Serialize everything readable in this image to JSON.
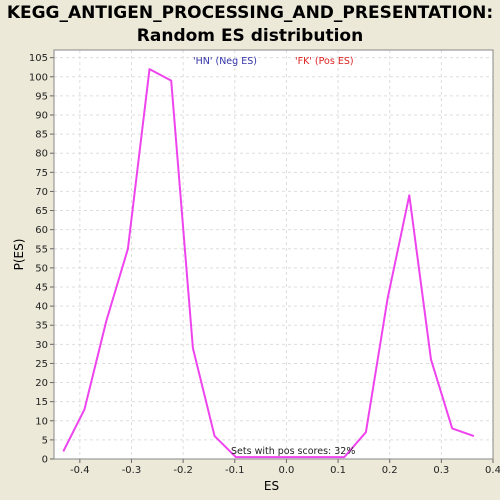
{
  "chart_data": {
    "type": "line",
    "title": "KEGG_ANTIGEN_PROCESSING_AND_PRESENTATION:",
    "subtitle": "Random ES distribution",
    "xlabel": "ES",
    "ylabel": "P(ES)",
    "xlim": [
      -0.45,
      0.4
    ],
    "ylim": [
      0,
      107
    ],
    "x_ticks": [
      "-0.4",
      "-0.3",
      "-0.2",
      "-0.1",
      "0.0",
      "0.1",
      "0.2",
      "0.3",
      "0.4"
    ],
    "y_ticks": [
      "0",
      "5",
      "10",
      "15",
      "20",
      "25",
      "30",
      "35",
      "40",
      "45",
      "50",
      "55",
      "60",
      "65",
      "70",
      "75",
      "80",
      "85",
      "90",
      "95",
      "100",
      "105"
    ],
    "grid": true,
    "series": [
      {
        "color": "#EE44EE",
        "points": [
          [
            -0.432,
            2
          ],
          [
            -0.391,
            13
          ],
          [
            -0.349,
            36
          ],
          [
            -0.307,
            55
          ],
          [
            -0.265,
            102
          ],
          [
            -0.223,
            99
          ],
          [
            -0.181,
            29
          ],
          [
            -0.139,
            6
          ],
          [
            -0.098,
            0.5
          ],
          [
            -0.056,
            0.5
          ],
          [
            -0.014,
            0.5
          ],
          [
            0.028,
            0.5
          ],
          [
            0.07,
            0.5
          ],
          [
            0.112,
            0.5
          ],
          [
            0.154,
            7
          ],
          [
            0.196,
            42
          ],
          [
            0.238,
            69
          ],
          [
            0.28,
            26
          ],
          [
            0.321,
            8
          ],
          [
            0.363,
            6
          ]
        ]
      }
    ],
    "legend": [
      {
        "label": "'HN' (Neg ES)",
        "color": "#3333AA"
      },
      {
        "label": "'FK' (Pos ES)",
        "color": "#DD2222"
      }
    ],
    "annotation": "Sets with pos scores: 32%"
  }
}
